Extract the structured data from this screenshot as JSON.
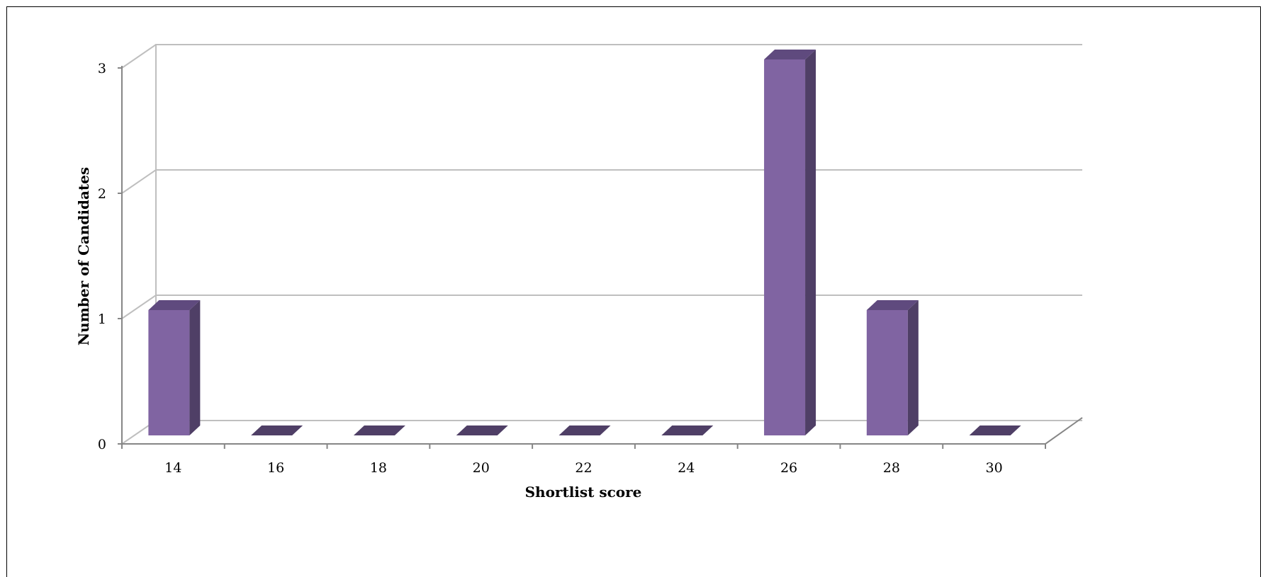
{
  "chart_data": {
    "type": "bar",
    "style": "3d-column",
    "categories": [
      "14",
      "16",
      "18",
      "20",
      "22",
      "24",
      "26",
      "28",
      "30"
    ],
    "values": [
      1,
      0,
      0,
      0,
      0,
      0,
      3,
      1,
      0
    ],
    "xlabel": "Shortlist score",
    "ylabel": "Number of Candidates",
    "ylim": [
      0,
      3
    ],
    "yticks": [
      "0",
      "1",
      "2",
      "3"
    ],
    "grid": true,
    "legend": "none",
    "colors": {
      "bar_front": "#8064a2",
      "bar_side": "#4f3f66",
      "bar_top": "#5f4a7e",
      "grid": "#bfbfbf",
      "axis": "#868686"
    }
  }
}
